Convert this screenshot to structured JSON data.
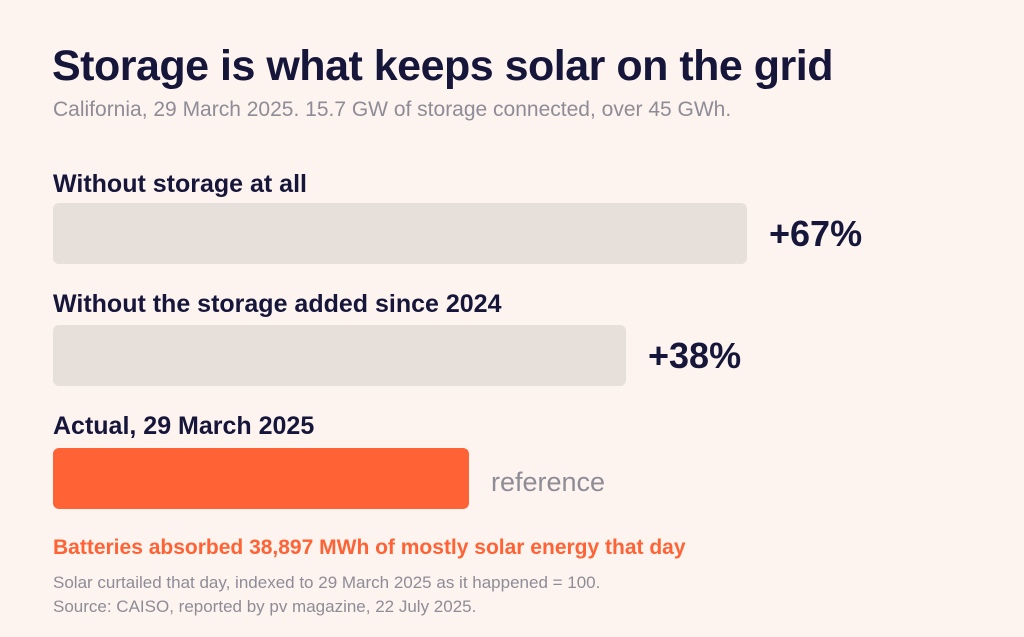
{
  "title": "Storage is what keeps solar on the grid",
  "subtitle": "California, 29 March 2025. 15.7 GW of storage connected, over 45 GWh.",
  "callout": "Batteries absorbed 38,897 MWh of mostly solar energy that day",
  "notes": [
    "Solar curtailed that day, indexed to 29 March 2025 as it happened = 100.",
    "Source: CAISO, reported by pv magazine, 22 July 2025."
  ],
  "colors": {
    "background": "#fdf3ef",
    "bar_grey": "#e7dfd9",
    "accent": "#ff6335",
    "text": "#16163a",
    "muted": "#8e8c97"
  },
  "chart_data": {
    "type": "bar",
    "orientation": "horizontal",
    "categories": [
      "Without storage at all",
      "Without the storage added since 2024",
      "Actual, 29 March 2025"
    ],
    "values": [
      167,
      138,
      100
    ],
    "labels": [
      "+67%",
      "+38%",
      "reference"
    ],
    "highlight": "Actual, 29 March 2025",
    "grid": false
  }
}
